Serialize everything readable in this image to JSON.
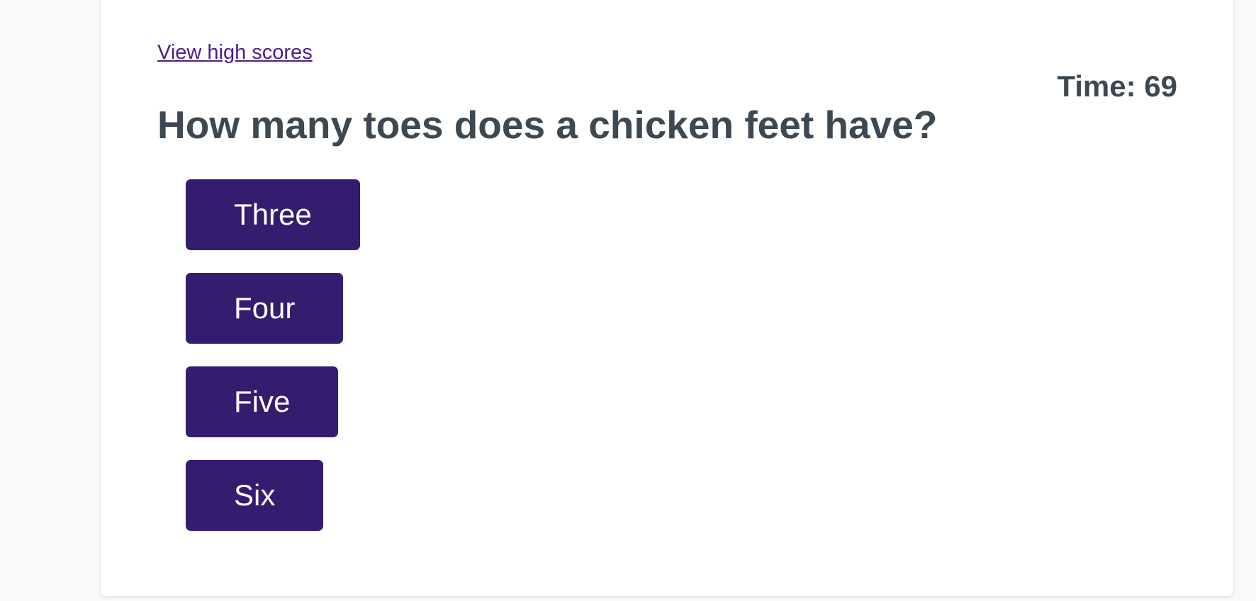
{
  "header": {
    "high_scores_link": "View high scores",
    "timer": "Time: 69"
  },
  "question": {
    "text": "How many toes does a chicken feet have?",
    "answers": [
      {
        "label": "Three"
      },
      {
        "label": "Four"
      },
      {
        "label": "Five"
      },
      {
        "label": "Six"
      }
    ]
  },
  "colors": {
    "button": "#341c6e",
    "text": "#3d4852",
    "link": "#4f1d8a",
    "background": "#f8f9fb"
  }
}
